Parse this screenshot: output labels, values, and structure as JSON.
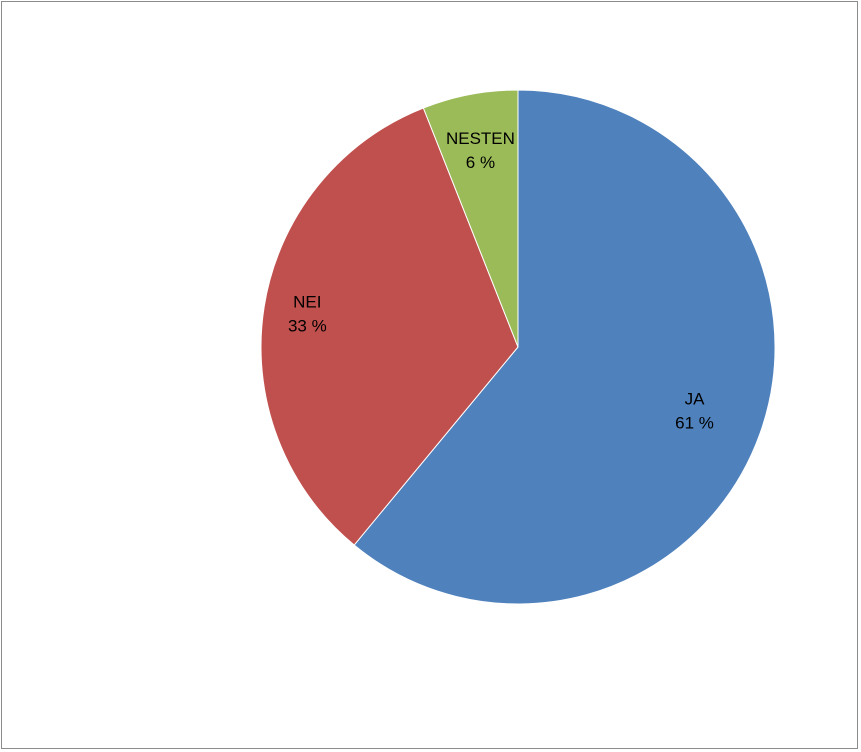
{
  "chart_data": {
    "type": "pie",
    "title": "",
    "slices": [
      {
        "label": "JA",
        "value": 61,
        "value_label": "61 %",
        "color": "#4F81BD"
      },
      {
        "label": "NEI",
        "value": 33,
        "value_label": "33 %",
        "color": "#C0504D"
      },
      {
        "label": "NESTEN",
        "value": 6,
        "value_label": "6 %",
        "color": "#9BBB59"
      }
    ],
    "start_angle": "12 o'clock",
    "direction": "clockwise",
    "legend": "none",
    "data_labels": "inside slices, category and percentage"
  }
}
